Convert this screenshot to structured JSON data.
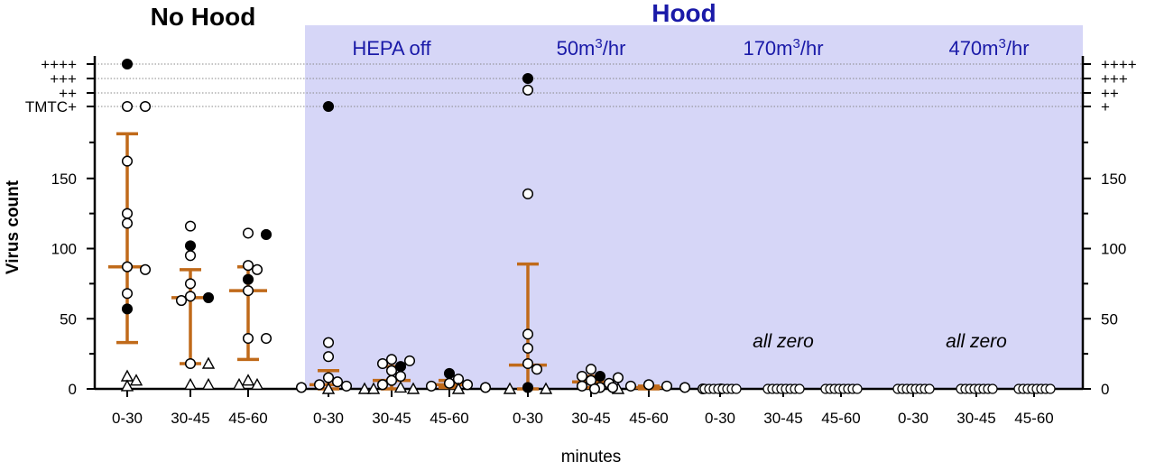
{
  "chart_data": {
    "type": "scatter",
    "titles": {
      "left": "No Hood",
      "right": "Hood"
    },
    "xlabel": "minutes",
    "ylabel": "Virus count",
    "ylim": [
      0,
      230
    ],
    "y_ticks": [
      {
        "value": 0,
        "label": "0"
      },
      {
        "value": 50,
        "label": "50"
      },
      {
        "value": 100,
        "label": "100"
      },
      {
        "value": 150,
        "label": "150"
      }
    ],
    "y_categorical_ticks": [
      {
        "value": 200,
        "label_left": "TMTC+",
        "label_right": "+"
      },
      {
        "value": 210,
        "label_left": "++",
        "label_right": "++"
      },
      {
        "value": 220,
        "label_left": "+++",
        "label_right": "+++"
      },
      {
        "value": 230,
        "label_left": "++++",
        "label_right": "++++"
      }
    ],
    "shading": {
      "from_condition": 1,
      "color": "#d6d6f7"
    },
    "errorbar_color": "#c06a1a",
    "conditions": [
      {
        "label": "",
        "groups": [
          {
            "x": "0-30",
            "mean": 87,
            "err_low": 33,
            "err_high": 181,
            "points": [
              {
                "v": 230,
                "s": "filled"
              },
              {
                "v": 200,
                "s": "open"
              },
              {
                "v": 200,
                "s": "open"
              },
              {
                "v": 162,
                "s": "open"
              },
              {
                "v": 125,
                "s": "open"
              },
              {
                "v": 118,
                "s": "open"
              },
              {
                "v": 87,
                "s": "open"
              },
              {
                "v": 85,
                "s": "open"
              },
              {
                "v": 68,
                "s": "open"
              },
              {
                "v": 57,
                "s": "filled"
              },
              {
                "v": 9,
                "s": "triangle"
              },
              {
                "v": 6,
                "s": "triangle"
              },
              {
                "v": 2,
                "s": "triangle"
              }
            ]
          },
          {
            "x": "30-45",
            "mean": 65,
            "err_low": 18,
            "err_high": 85,
            "points": [
              {
                "v": 116,
                "s": "open"
              },
              {
                "v": 102,
                "s": "filled"
              },
              {
                "v": 95,
                "s": "open"
              },
              {
                "v": 75,
                "s": "open"
              },
              {
                "v": 66,
                "s": "open"
              },
              {
                "v": 65,
                "s": "filled"
              },
              {
                "v": 63,
                "s": "open"
              },
              {
                "v": 18,
                "s": "open"
              },
              {
                "v": 18,
                "s": "triangle"
              },
              {
                "v": 3,
                "s": "triangle"
              },
              {
                "v": 3,
                "s": "triangle"
              }
            ]
          },
          {
            "x": "45-60",
            "mean": 70,
            "err_low": 21,
            "err_high": 87,
            "points": [
              {
                "v": 111,
                "s": "open"
              },
              {
                "v": 110,
                "s": "filled"
              },
              {
                "v": 88,
                "s": "open"
              },
              {
                "v": 85,
                "s": "open"
              },
              {
                "v": 78,
                "s": "filled"
              },
              {
                "v": 70,
                "s": "open"
              },
              {
                "v": 36,
                "s": "open"
              },
              {
                "v": 36,
                "s": "open"
              },
              {
                "v": 6,
                "s": "triangle"
              },
              {
                "v": 3,
                "s": "triangle"
              },
              {
                "v": 3,
                "s": "triangle"
              }
            ]
          }
        ]
      },
      {
        "label": "HEPA off",
        "groups": [
          {
            "x": "0-30",
            "mean": 3,
            "err_low": 0,
            "err_high": 13,
            "points": [
              {
                "v": 200,
                "s": "filled"
              },
              {
                "v": 33,
                "s": "open"
              },
              {
                "v": 23,
                "s": "open"
              },
              {
                "v": 8,
                "s": "open"
              },
              {
                "v": 5,
                "s": "open"
              },
              {
                "v": 3,
                "s": "open"
              },
              {
                "v": 2,
                "s": "open"
              },
              {
                "v": 1,
                "s": "open"
              },
              {
                "v": 0,
                "s": "triangle"
              },
              {
                "v": 0,
                "s": "triangle"
              }
            ]
          },
          {
            "x": "30-45",
            "mean": 6,
            "err_low": 0,
            "err_high": 16,
            "points": [
              {
                "v": 21,
                "s": "open"
              },
              {
                "v": 20,
                "s": "open"
              },
              {
                "v": 18,
                "s": "open"
              },
              {
                "v": 16,
                "s": "filled"
              },
              {
                "v": 13,
                "s": "open"
              },
              {
                "v": 9,
                "s": "open"
              },
              {
                "v": 6,
                "s": "open"
              },
              {
                "v": 3,
                "s": "open"
              },
              {
                "v": 1,
                "s": "triangle"
              },
              {
                "v": 0,
                "s": "triangle"
              }
            ]
          },
          {
            "x": "45-60",
            "mean": 3,
            "err_low": 1,
            "err_high": 6,
            "points": [
              {
                "v": 11,
                "s": "filled"
              },
              {
                "v": 7,
                "s": "open"
              },
              {
                "v": 4,
                "s": "open"
              },
              {
                "v": 3,
                "s": "open"
              },
              {
                "v": 2,
                "s": "open"
              },
              {
                "v": 1,
                "s": "open"
              },
              {
                "v": 0,
                "s": "triangle"
              },
              {
                "v": 0,
                "s": "triangle"
              }
            ]
          }
        ]
      },
      {
        "label": "50m³/hr",
        "groups": [
          {
            "x": "0-30",
            "mean": 17,
            "err_low": 0,
            "err_high": 89,
            "points": [
              {
                "v": 220,
                "s": "filled"
              },
              {
                "v": 212,
                "s": "open"
              },
              {
                "v": 139,
                "s": "open"
              },
              {
                "v": 39,
                "s": "open"
              },
              {
                "v": 29,
                "s": "open"
              },
              {
                "v": 18,
                "s": "open"
              },
              {
                "v": 14,
                "s": "open"
              },
              {
                "v": 1,
                "s": "filled"
              },
              {
                "v": 0,
                "s": "triangle"
              },
              {
                "v": 0,
                "s": "triangle"
              }
            ]
          },
          {
            "x": "30-45",
            "mean": 5,
            "err_low": 1,
            "err_high": 9,
            "points": [
              {
                "v": 14,
                "s": "open"
              },
              {
                "v": 9,
                "s": "filled"
              },
              {
                "v": 9,
                "s": "open"
              },
              {
                "v": 8,
                "s": "open"
              },
              {
                "v": 6,
                "s": "open"
              },
              {
                "v": 4,
                "s": "open"
              },
              {
                "v": 2,
                "s": "open"
              },
              {
                "v": 1,
                "s": "open"
              },
              {
                "v": 0,
                "s": "triangle"
              }
            ]
          },
          {
            "x": "45-60",
            "mean": 1,
            "err_low": 0,
            "err_high": 2,
            "points": [
              {
                "v": 3,
                "s": "open"
              },
              {
                "v": 2,
                "s": "open"
              },
              {
                "v": 2,
                "s": "open"
              },
              {
                "v": 1,
                "s": "open"
              },
              {
                "v": 1,
                "s": "open"
              },
              {
                "v": 0,
                "s": "open"
              },
              {
                "v": 0,
                "s": "open"
              },
              {
                "v": 0,
                "s": "open"
              }
            ]
          }
        ]
      },
      {
        "label": "170m³/hr",
        "annotation": "all zero",
        "groups": [
          {
            "x": "0-30",
            "mean": 0,
            "err_low": 0,
            "err_high": 0,
            "zero_count": 8,
            "points": []
          },
          {
            "x": "30-45",
            "mean": 0,
            "err_low": 0,
            "err_high": 0,
            "zero_count": 8,
            "points": []
          },
          {
            "x": "45-60",
            "mean": 0,
            "err_low": 0,
            "err_high": 0,
            "zero_count": 8,
            "points": []
          }
        ]
      },
      {
        "label": "470m³/hr",
        "annotation": "all zero",
        "groups": [
          {
            "x": "0-30",
            "mean": 0,
            "err_low": 0,
            "err_high": 0,
            "zero_count": 8,
            "points": []
          },
          {
            "x": "30-45",
            "mean": 0,
            "err_low": 0,
            "err_high": 0,
            "zero_count": 8,
            "points": []
          },
          {
            "x": "45-60",
            "mean": 0,
            "err_low": 0,
            "err_high": 0,
            "zero_count": 8,
            "points": []
          }
        ]
      }
    ]
  }
}
